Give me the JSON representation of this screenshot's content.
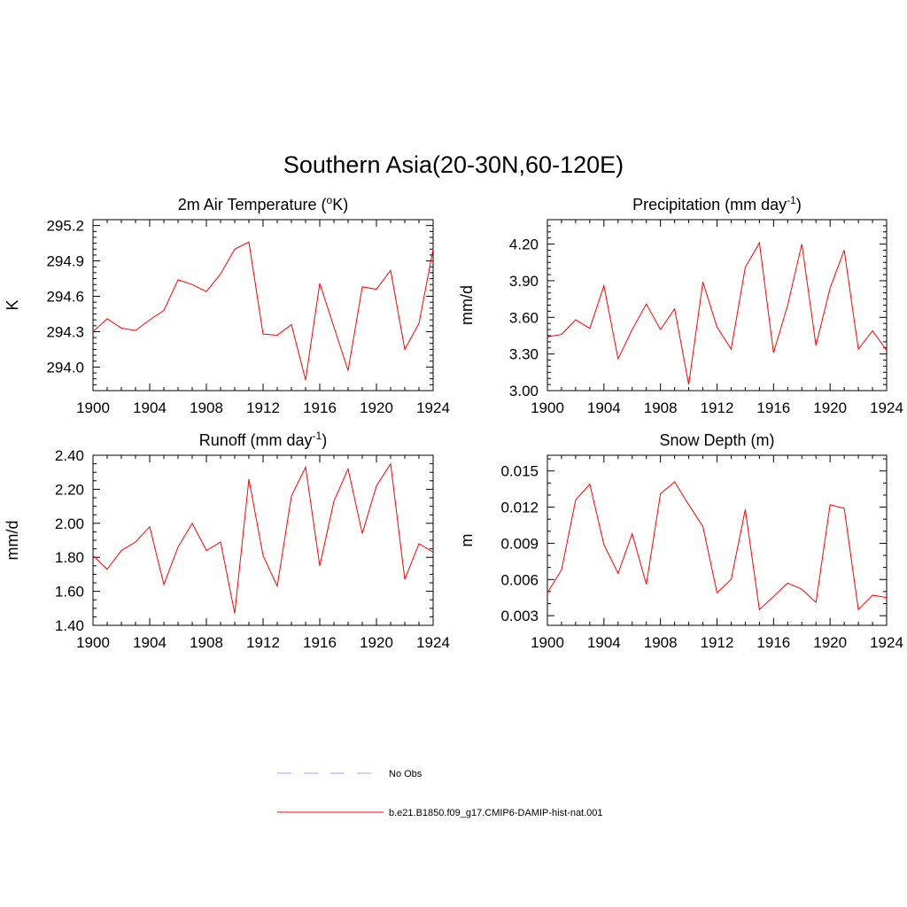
{
  "figure": {
    "title": "Southern Asia(20-30N,60-120E)"
  },
  "legend": [
    {
      "label": "No Obs",
      "color": "#9aa0ff",
      "style": "dashed"
    },
    {
      "label": "b.e21.B1850.f09_g17.CMIP6-DAMIP-hist-nat.001",
      "color": "#ff0000",
      "style": "solid"
    }
  ],
  "chart_data": [
    {
      "type": "line",
      "title": "2m Air Temperature",
      "title_unit_prefix": "(",
      "title_unit_sup": "o",
      "title_unit_suffix": "K)",
      "ylabel": "K",
      "xlim": [
        1900,
        1924
      ],
      "ylim": [
        293.8,
        295.25
      ],
      "xticks": [
        1900,
        1904,
        1908,
        1912,
        1916,
        1920,
        1924
      ],
      "xtick_labels": [
        "1900",
        "1904",
        "1908",
        "1912",
        "1916",
        "1920",
        "1924"
      ],
      "yticks": [
        294.0,
        294.3,
        294.6,
        294.9,
        295.2
      ],
      "ytick_labels": [
        "294.0",
        "294.3",
        "294.6",
        "294.9",
        "295.2"
      ],
      "yminor_step": 0.05,
      "series": [
        {
          "color": "#ff0000",
          "x": [
            1900,
            1901,
            1902,
            1903,
            1904,
            1905,
            1906,
            1907,
            1908,
            1909,
            1910,
            1911,
            1912,
            1913,
            1914,
            1915,
            1916,
            1917,
            1918,
            1919,
            1920,
            1921,
            1922,
            1923,
            1924
          ],
          "y": [
            294.3,
            294.41,
            294.33,
            294.31,
            294.4,
            294.48,
            294.74,
            294.7,
            294.64,
            294.79,
            295.0,
            295.06,
            294.28,
            294.27,
            294.36,
            293.89,
            294.71,
            294.34,
            293.97,
            294.68,
            294.66,
            294.82,
            294.15,
            294.37,
            295.0
          ]
        }
      ]
    },
    {
      "type": "line",
      "title": "Precipitation",
      "title_unit_prefix": "(mm day",
      "title_unit_sup": "-1",
      "title_unit_suffix": ")",
      "ylabel": "mm/d",
      "xlim": [
        1900,
        1924
      ],
      "ylim": [
        3.0,
        4.4
      ],
      "xticks": [
        1900,
        1904,
        1908,
        1912,
        1916,
        1920,
        1924
      ],
      "xtick_labels": [
        "1900",
        "1904",
        "1908",
        "1912",
        "1916",
        "1920",
        "1924"
      ],
      "yticks": [
        3.0,
        3.3,
        3.6,
        3.9,
        4.2
      ],
      "ytick_labels": [
        "3.00",
        "3.30",
        "3.60",
        "3.90",
        "4.20"
      ],
      "yminor_step": 0.05,
      "series": [
        {
          "color": "#ff0000",
          "x": [
            1900,
            1901,
            1902,
            1903,
            1904,
            1905,
            1906,
            1907,
            1908,
            1909,
            1910,
            1911,
            1912,
            1913,
            1914,
            1915,
            1916,
            1917,
            1918,
            1919,
            1920,
            1921,
            1922,
            1923,
            1924
          ],
          "y": [
            3.44,
            3.46,
            3.58,
            3.51,
            3.86,
            3.26,
            3.5,
            3.71,
            3.5,
            3.67,
            3.05,
            3.89,
            3.52,
            3.34,
            4.01,
            4.21,
            3.31,
            3.7,
            4.2,
            3.37,
            3.84,
            4.15,
            3.34,
            3.49,
            3.33
          ]
        }
      ]
    },
    {
      "type": "line",
      "title": "Runoff",
      "title_unit_prefix": "(mm day",
      "title_unit_sup": "-1",
      "title_unit_suffix": ")",
      "ylabel": "mm/d",
      "xlim": [
        1900,
        1924
      ],
      "ylim": [
        1.4,
        2.4
      ],
      "xticks": [
        1900,
        1904,
        1908,
        1912,
        1916,
        1920,
        1924
      ],
      "xtick_labels": [
        "1900",
        "1904",
        "1908",
        "1912",
        "1916",
        "1920",
        "1924"
      ],
      "yticks": [
        1.4,
        1.6,
        1.8,
        2.0,
        2.2,
        2.4
      ],
      "ytick_labels": [
        "1.40",
        "1.60",
        "1.80",
        "2.00",
        "2.20",
        "2.40"
      ],
      "yminor_step": 0.05,
      "series": [
        {
          "color": "#ff0000",
          "x": [
            1900,
            1901,
            1902,
            1903,
            1904,
            1905,
            1906,
            1907,
            1908,
            1909,
            1910,
            1911,
            1912,
            1913,
            1914,
            1915,
            1916,
            1917,
            1918,
            1919,
            1920,
            1921,
            1922,
            1923,
            1924
          ],
          "y": [
            1.81,
            1.73,
            1.84,
            1.89,
            1.98,
            1.64,
            1.86,
            2.0,
            1.84,
            1.89,
            1.47,
            2.26,
            1.81,
            1.63,
            2.16,
            2.33,
            1.75,
            2.13,
            2.32,
            1.94,
            2.22,
            2.35,
            1.67,
            1.88,
            1.83
          ]
        }
      ]
    },
    {
      "type": "line",
      "title": "Snow Depth (m)",
      "title_unit_prefix": "",
      "title_unit_sup": "",
      "title_unit_suffix": "",
      "ylabel": "m",
      "xlim": [
        1900,
        1924
      ],
      "ylim": [
        0.0022,
        0.0163
      ],
      "xticks": [
        1900,
        1904,
        1908,
        1912,
        1916,
        1920,
        1924
      ],
      "xtick_labels": [
        "1900",
        "1904",
        "1908",
        "1912",
        "1916",
        "1920",
        "1924"
      ],
      "yticks": [
        0.003,
        0.006,
        0.009,
        0.012,
        0.015
      ],
      "ytick_labels": [
        "0.003",
        "0.006",
        "0.009",
        "0.012",
        "0.015"
      ],
      "yminor_step": 0.001,
      "series": [
        {
          "color": "#ff0000",
          "x": [
            1900,
            1901,
            1902,
            1903,
            1904,
            1905,
            1906,
            1907,
            1908,
            1909,
            1910,
            1911,
            1912,
            1913,
            1914,
            1915,
            1916,
            1917,
            1918,
            1919,
            1920,
            1921,
            1922,
            1923,
            1924
          ],
          "y": [
            0.0049,
            0.0068,
            0.0126,
            0.0139,
            0.0089,
            0.0065,
            0.0098,
            0.0056,
            0.0131,
            0.0141,
            0.0122,
            0.0104,
            0.0049,
            0.006,
            0.0118,
            0.0035,
            0.0046,
            0.0057,
            0.0052,
            0.0041,
            0.0122,
            0.0119,
            0.0035,
            0.0047,
            0.0045
          ]
        }
      ]
    }
  ]
}
